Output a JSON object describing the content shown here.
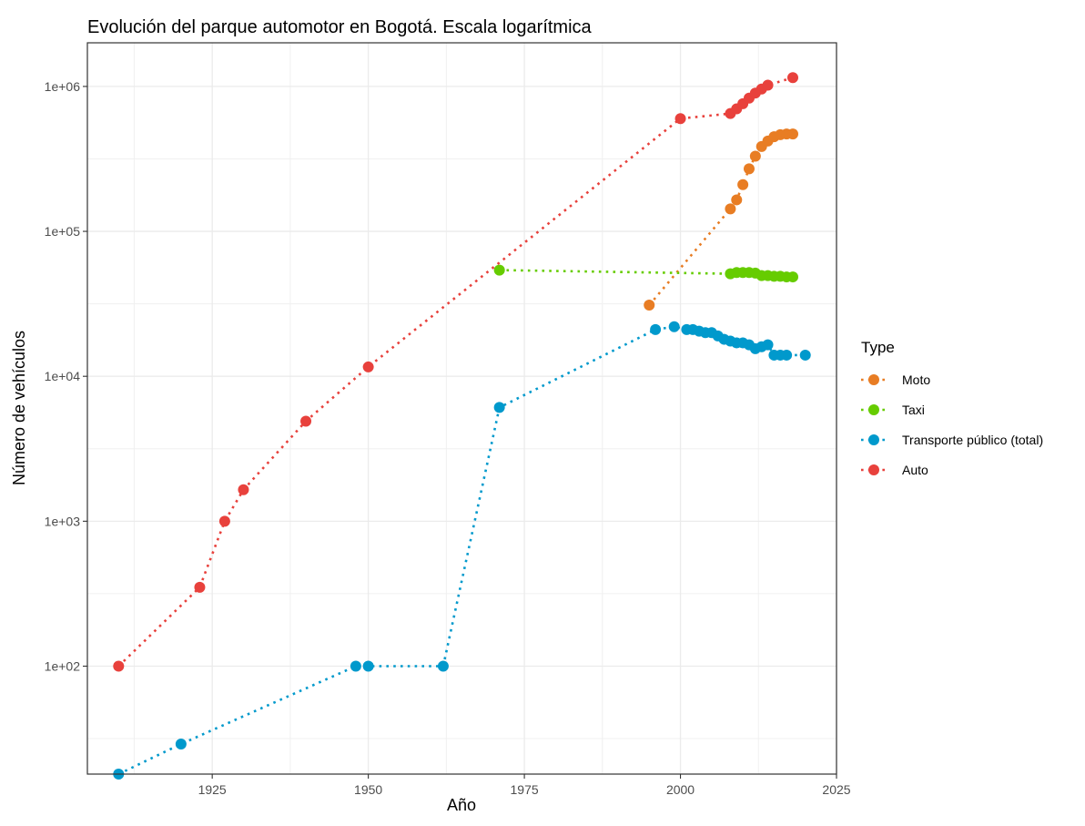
{
  "chart_data": {
    "type": "line",
    "title": "Evolución del parque automotor en Bogotá. Escala logarítmica",
    "xlabel": "Año",
    "ylabel": "Número de vehículos",
    "y_scale": "log10",
    "xlim": [
      1905,
      2025
    ],
    "ylim": [
      18,
      2000000
    ],
    "x_ticks": [
      1925,
      1950,
      1975,
      2000,
      2025
    ],
    "x_tick_labels": [
      "1925",
      "1950",
      "1975",
      "2000",
      "2025"
    ],
    "y_ticks": [
      100,
      1000,
      10000,
      100000,
      1000000
    ],
    "y_tick_labels": [
      "1e+02",
      "1e+03",
      "1e+04",
      "1e+05",
      "1e+06"
    ],
    "grid": true,
    "line_style": "dotted",
    "legend": {
      "title": "Type",
      "position": "right"
    },
    "series": [
      {
        "name": "Moto",
        "color": "#E87D24",
        "x": [
          1995,
          2008,
          2009,
          2010,
          2011,
          2012,
          2013,
          2014,
          2015,
          2016,
          2017,
          2018
        ],
        "y": [
          31000,
          143000,
          165000,
          210000,
          270000,
          330000,
          385000,
          420000,
          450000,
          465000,
          470000,
          470000
        ]
      },
      {
        "name": "Taxi",
        "color": "#66CC00",
        "x": [
          1971,
          2008,
          2009,
          2010,
          2011,
          2012,
          2013,
          2014,
          2015,
          2016,
          2017,
          2018
        ],
        "y": [
          54000,
          51000,
          52000,
          52000,
          52000,
          51500,
          49500,
          49500,
          49000,
          49000,
          48500,
          48500
        ]
      },
      {
        "name": "Transporte público (total)",
        "color": "#0099CC",
        "x": [
          1910,
          1920,
          1948,
          1950,
          1962,
          1971,
          1996,
          1999,
          2001,
          2002,
          2003,
          2004,
          2005,
          2006,
          2007,
          2008,
          2009,
          2010,
          2011,
          2012,
          2013,
          2014,
          2015,
          2016,
          2017,
          2020
        ],
        "y": [
          18,
          29,
          100,
          100,
          100,
          6100,
          21000,
          22000,
          21000,
          21000,
          20500,
          20000,
          20000,
          19000,
          18000,
          17500,
          17000,
          17000,
          16500,
          15500,
          16000,
          16500,
          14000,
          14000,
          14000,
          14000
        ]
      },
      {
        "name": "Auto",
        "color": "#E8413C",
        "x": [
          1910,
          1923,
          1927,
          1930,
          1940,
          1950,
          2000,
          2008,
          2009,
          2010,
          2011,
          2012,
          2013,
          2014,
          2018
        ],
        "y": [
          100,
          350,
          1000,
          1650,
          4900,
          11600,
          600000,
          650000,
          700000,
          760000,
          830000,
          900000,
          960000,
          1020000,
          1150000
        ]
      }
    ]
  }
}
